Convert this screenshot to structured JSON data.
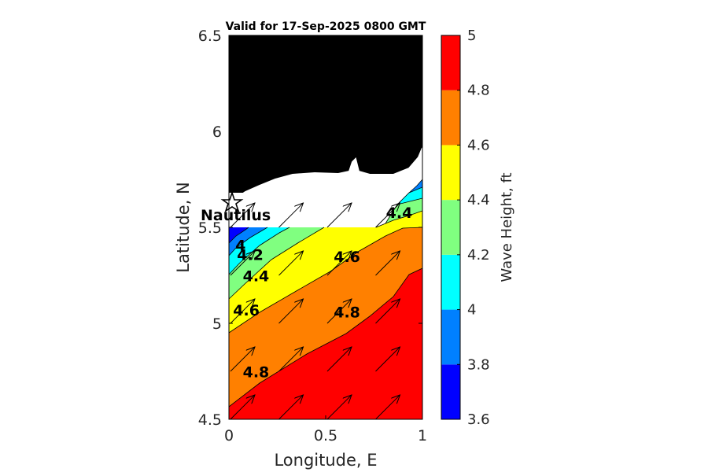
{
  "chart_data": {
    "type": "contour",
    "title": "Valid for 17-Sep-2025 0800 GMT",
    "xlabel": "Longitude, E",
    "ylabel": "Latitude, N",
    "xlim": [
      0,
      1
    ],
    "ylim": [
      4.5,
      6.5
    ],
    "xticks": [
      "0",
      "0.5",
      "1"
    ],
    "yticks": [
      "4.5",
      "5",
      "5.5",
      "6",
      "6.5"
    ],
    "colorbar": {
      "label": "Wave Height, ft",
      "range": [
        3.6,
        5
      ],
      "levels": [
        3.6,
        3.8,
        4,
        4.2,
        4.4,
        4.6,
        4.8,
        5
      ],
      "ticks": [
        "3.6",
        "3.8",
        "4",
        "4.2",
        "4.4",
        "4.6",
        "4.8",
        "5"
      ],
      "colors": [
        "#0000ff",
        "#0080ff",
        "#00ffff",
        "#80ff80",
        "#ffff00",
        "#ff8000",
        "#ff0000"
      ]
    },
    "station": {
      "name": "Nautilus",
      "lon": 0.0,
      "lat": 5.6
    },
    "contour_labels": [
      {
        "text": "4",
        "lon": 0.06,
        "lat": 5.38
      },
      {
        "text": "4.2",
        "lon": 0.11,
        "lat": 5.33
      },
      {
        "text": "4.4",
        "lon": 0.14,
        "lat": 5.22
      },
      {
        "text": "4.6",
        "lon": 0.09,
        "lat": 5.04
      },
      {
        "text": "4.8",
        "lon": 0.14,
        "lat": 4.72
      },
      {
        "text": "4.6",
        "lon": 0.61,
        "lat": 5.32
      },
      {
        "text": "4.8",
        "lon": 0.61,
        "lat": 5.03
      },
      {
        "text": "4.4",
        "lon": 0.88,
        "lat": 5.55
      }
    ],
    "arrows_lon": [
      0.0,
      0.25,
      0.5,
      0.75
    ],
    "arrows_lat": [
      4.5,
      4.75,
      5.0,
      5.25,
      5.5
    ],
    "land_color": "#000000"
  }
}
